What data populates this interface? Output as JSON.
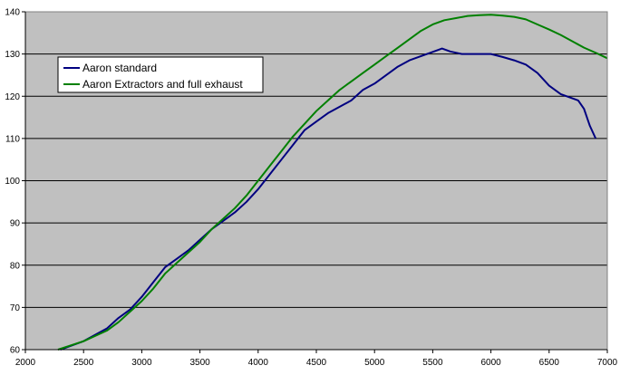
{
  "chart_data": {
    "type": "line",
    "title": "",
    "xlabel": "",
    "ylabel": "",
    "xlim": [
      2000,
      7000
    ],
    "ylim": [
      60,
      140
    ],
    "x_ticks": [
      2000,
      2500,
      3000,
      3500,
      4000,
      4500,
      5000,
      5500,
      6000,
      6500,
      7000
    ],
    "y_ticks": [
      60,
      70,
      80,
      90,
      100,
      110,
      120,
      130,
      140
    ],
    "grid": "horizontal",
    "legend_position": "top-left",
    "plot_background": "#c0c0c0",
    "series": [
      {
        "name": "Aaron standard",
        "color": "#000080",
        "points": [
          [
            2300,
            60
          ],
          [
            2500,
            62
          ],
          [
            2700,
            65
          ],
          [
            2800,
            67.5
          ],
          [
            2900,
            69.5
          ],
          [
            3000,
            72.5
          ],
          [
            3100,
            76
          ],
          [
            3200,
            79.5
          ],
          [
            3300,
            81.5
          ],
          [
            3400,
            83.5
          ],
          [
            3500,
            86
          ],
          [
            3600,
            88.5
          ],
          [
            3700,
            90.5
          ],
          [
            3800,
            92.5
          ],
          [
            3900,
            95
          ],
          [
            4000,
            98
          ],
          [
            4100,
            101.5
          ],
          [
            4200,
            105
          ],
          [
            4300,
            108.5
          ],
          [
            4400,
            112
          ],
          [
            4500,
            114
          ],
          [
            4600,
            116
          ],
          [
            4700,
            117.5
          ],
          [
            4800,
            119
          ],
          [
            4900,
            121.5
          ],
          [
            5000,
            123
          ],
          [
            5100,
            125
          ],
          [
            5200,
            127
          ],
          [
            5300,
            128.5
          ],
          [
            5400,
            129.5
          ],
          [
            5500,
            130.5
          ],
          [
            5580,
            131.3
          ],
          [
            5650,
            130.6
          ],
          [
            5750,
            130
          ],
          [
            5900,
            130
          ],
          [
            6000,
            130
          ],
          [
            6100,
            129.3
          ],
          [
            6200,
            128.5
          ],
          [
            6300,
            127.5
          ],
          [
            6400,
            125.5
          ],
          [
            6500,
            122.5
          ],
          [
            6600,
            120.5
          ],
          [
            6700,
            119.5
          ],
          [
            6750,
            119
          ],
          [
            6800,
            117
          ],
          [
            6850,
            113
          ],
          [
            6900,
            110
          ]
        ]
      },
      {
        "name": "Aaron Extractors and full exhaust",
        "color": "#008000",
        "points": [
          [
            2280,
            60
          ],
          [
            2500,
            62
          ],
          [
            2700,
            64.5
          ],
          [
            2800,
            66.5
          ],
          [
            2900,
            69
          ],
          [
            3000,
            71.5
          ],
          [
            3100,
            74.5
          ],
          [
            3200,
            78
          ],
          [
            3300,
            80.5
          ],
          [
            3400,
            83
          ],
          [
            3500,
            85.5
          ],
          [
            3600,
            88.5
          ],
          [
            3700,
            91
          ],
          [
            3800,
            93.5
          ],
          [
            3900,
            96.5
          ],
          [
            4000,
            100
          ],
          [
            4100,
            103.5
          ],
          [
            4200,
            107
          ],
          [
            4300,
            110.5
          ],
          [
            4400,
            113.5
          ],
          [
            4500,
            116.5
          ],
          [
            4600,
            119
          ],
          [
            4700,
            121.5
          ],
          [
            4800,
            123.5
          ],
          [
            4900,
            125.5
          ],
          [
            5000,
            127.5
          ],
          [
            5100,
            129.5
          ],
          [
            5200,
            131.5
          ],
          [
            5300,
            133.5
          ],
          [
            5400,
            135.5
          ],
          [
            5500,
            137
          ],
          [
            5600,
            138
          ],
          [
            5700,
            138.5
          ],
          [
            5800,
            139
          ],
          [
            5900,
            139.2
          ],
          [
            6000,
            139.3
          ],
          [
            6100,
            139.1
          ],
          [
            6200,
            138.8
          ],
          [
            6300,
            138.2
          ],
          [
            6400,
            137
          ],
          [
            6500,
            135.8
          ],
          [
            6600,
            134.5
          ],
          [
            6700,
            133
          ],
          [
            6800,
            131.5
          ],
          [
            6900,
            130.3
          ],
          [
            7000,
            129
          ]
        ]
      }
    ]
  }
}
